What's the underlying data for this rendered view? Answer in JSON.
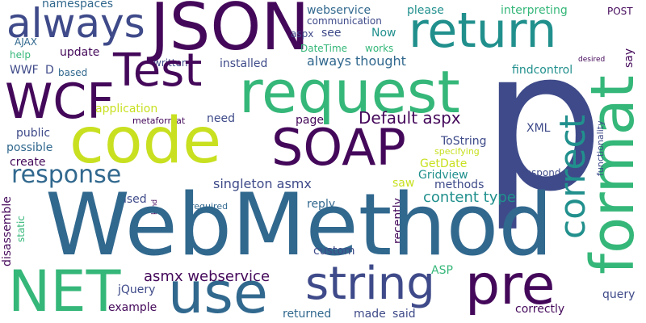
{
  "colors": {
    "background": "#ffffff",
    "dark_purple": "#44085a",
    "indigo": "#3e4a89",
    "blue": "#31688e",
    "teal": "#21908d",
    "green": "#35b779",
    "lime": "#90d743",
    "yellow": "#c8e020"
  },
  "words": [
    "JSON",
    "always",
    "namespaces",
    "webservice",
    "please",
    "interpreting",
    "POST",
    "return",
    "communication",
    "aspx",
    "see",
    "Now",
    "AJAX",
    "DateTime",
    "works",
    "help",
    "update",
    "written",
    "installed",
    "always thought",
    "desired",
    "say",
    "Test",
    "WWF",
    "D",
    "based",
    "findcontrol",
    "p",
    "WCF",
    "request",
    "format",
    "application",
    "metaformat",
    "need",
    "page",
    "Default aspx",
    "public",
    "code",
    "XML",
    "possible",
    "ToString",
    "specifying",
    "SOAP",
    "functionality",
    "correct",
    "GetDate",
    "create",
    "Gridview",
    "respond",
    "response",
    "singleton asmx",
    "saw",
    "methods",
    "disassemble",
    "used",
    "content type",
    "kind",
    "required",
    "reply",
    "recently",
    "static",
    "WebMethod",
    "custom",
    "NET",
    "ASP",
    "use",
    "asmx webservice",
    "string",
    "pre",
    "jQuery",
    "query",
    "example",
    "correctly",
    "returned",
    "made",
    "said"
  ]
}
